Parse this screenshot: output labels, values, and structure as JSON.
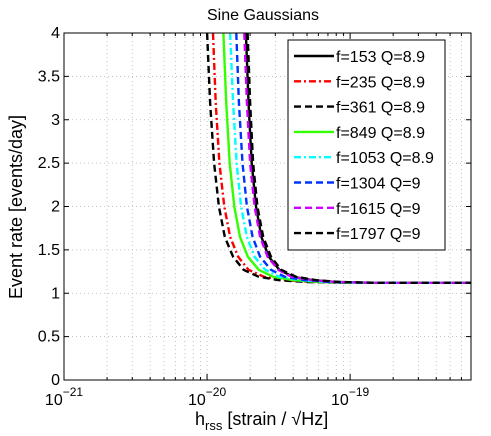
{
  "chart_data": {
    "type": "line",
    "title": "Sine Gaussians",
    "xlabel_main": "h",
    "xlabel_sub": "rss",
    "xlabel_rest": " [strain / √Hz]",
    "ylabel": "Event rate [events/day]",
    "x_scale": "log",
    "xlim": [
      1e-21,
      7e-19
    ],
    "ylim": [
      0,
      4
    ],
    "grid": true,
    "legend_position": "top-right",
    "xticks": [
      {
        "value": 1e-21,
        "base": "10",
        "exp": "−21"
      },
      {
        "value": 1e-20,
        "base": "10",
        "exp": "−20"
      },
      {
        "value": 1e-19,
        "base": "10",
        "exp": "−19"
      }
    ],
    "yticks": [
      "0",
      "0.5",
      "1",
      "1.5",
      "2",
      "2.5",
      "3",
      "3.5",
      "4"
    ],
    "series": [
      {
        "name": "f=153 Q=8.9",
        "color": "#000000",
        "style": "solid",
        "points": [
          [
            1.87e-20,
            4.0
          ],
          [
            1.95e-20,
            3.2
          ],
          [
            2.05e-20,
            2.5
          ],
          [
            2.2e-20,
            2.0
          ],
          [
            2.4e-20,
            1.65
          ],
          [
            2.7e-20,
            1.42
          ],
          [
            3.2e-20,
            1.27
          ],
          [
            4e-20,
            1.19
          ],
          [
            5.5e-20,
            1.15
          ],
          [
            8e-20,
            1.13
          ],
          [
            1.5e-19,
            1.12
          ],
          [
            7e-19,
            1.12
          ]
        ]
      },
      {
        "name": "f=235 Q=8.9",
        "color": "#ff0000",
        "style": "dashdot",
        "points": [
          [
            1.1e-20,
            4.0
          ],
          [
            1.15e-20,
            3.2
          ],
          [
            1.22e-20,
            2.5
          ],
          [
            1.32e-20,
            2.0
          ],
          [
            1.45e-20,
            1.65
          ],
          [
            1.65e-20,
            1.42
          ],
          [
            1.95e-20,
            1.27
          ],
          [
            2.5e-20,
            1.19
          ],
          [
            3.5e-20,
            1.15
          ],
          [
            5.5e-20,
            1.13
          ],
          [
            1e-19,
            1.12
          ],
          [
            7e-19,
            1.12
          ]
        ]
      },
      {
        "name": "f=361 Q=8.9",
        "color": "#000000",
        "style": "dashed",
        "points": [
          [
            1e-20,
            4.0
          ],
          [
            1.05e-20,
            3.2
          ],
          [
            1.12e-20,
            2.5
          ],
          [
            1.21e-20,
            2.0
          ],
          [
            1.33e-20,
            1.65
          ],
          [
            1.52e-20,
            1.42
          ],
          [
            1.8e-20,
            1.27
          ],
          [
            2.3e-20,
            1.19
          ],
          [
            3.2e-20,
            1.15
          ],
          [
            5e-20,
            1.13
          ],
          [
            9e-20,
            1.12
          ],
          [
            7e-19,
            1.12
          ]
        ]
      },
      {
        "name": "f=849 Q=8.9",
        "color": "#33ff00",
        "style": "solid",
        "points": [
          [
            1.3e-20,
            4.0
          ],
          [
            1.36e-20,
            3.2
          ],
          [
            1.44e-20,
            2.5
          ],
          [
            1.55e-20,
            2.0
          ],
          [
            1.7e-20,
            1.65
          ],
          [
            1.93e-20,
            1.42
          ],
          [
            2.3e-20,
            1.27
          ],
          [
            2.9e-20,
            1.19
          ],
          [
            4e-20,
            1.15
          ],
          [
            6.2e-20,
            1.13
          ],
          [
            1.1e-19,
            1.12
          ],
          [
            7e-19,
            1.12
          ]
        ]
      },
      {
        "name": "f=1053 Q=8.9",
        "color": "#00ffff",
        "style": "dashdot",
        "points": [
          [
            1.45e-20,
            4.0
          ],
          [
            1.52e-20,
            3.2
          ],
          [
            1.61e-20,
            2.5
          ],
          [
            1.73e-20,
            2.0
          ],
          [
            1.9e-20,
            1.65
          ],
          [
            2.15e-20,
            1.42
          ],
          [
            2.55e-20,
            1.27
          ],
          [
            3.2e-20,
            1.19
          ],
          [
            4.5e-20,
            1.15
          ],
          [
            6.8e-20,
            1.13
          ],
          [
            1.2e-19,
            1.12
          ],
          [
            7e-19,
            1.12
          ]
        ]
      },
      {
        "name": "f=1304 Q=9",
        "color": "#0033ff",
        "style": "dashed",
        "points": [
          [
            1.6e-20,
            4.0
          ],
          [
            1.67e-20,
            3.2
          ],
          [
            1.77e-20,
            2.5
          ],
          [
            1.9e-20,
            2.0
          ],
          [
            2.08e-20,
            1.65
          ],
          [
            2.35e-20,
            1.42
          ],
          [
            2.8e-20,
            1.27
          ],
          [
            3.5e-20,
            1.19
          ],
          [
            4.8e-20,
            1.15
          ],
          [
            7.2e-20,
            1.13
          ],
          [
            1.3e-19,
            1.12
          ],
          [
            7e-19,
            1.12
          ]
        ]
      },
      {
        "name": "f=1615 Q=9",
        "color": "#cc00ff",
        "style": "dashed",
        "points": [
          [
            1.82e-20,
            4.0
          ],
          [
            1.9e-20,
            3.2
          ],
          [
            2e-20,
            2.5
          ],
          [
            2.15e-20,
            2.0
          ],
          [
            2.35e-20,
            1.65
          ],
          [
            2.65e-20,
            1.42
          ],
          [
            3.15e-20,
            1.27
          ],
          [
            3.9e-20,
            1.19
          ],
          [
            5.4e-20,
            1.15
          ],
          [
            8e-20,
            1.13
          ],
          [
            1.4e-19,
            1.12
          ],
          [
            7e-19,
            1.12
          ]
        ]
      },
      {
        "name": "f=1797 Q=9",
        "color": "#000000",
        "style": "dashed",
        "points": [
          [
            1.92e-20,
            4.0
          ],
          [
            2e-20,
            3.2
          ],
          [
            2.1e-20,
            2.5
          ],
          [
            2.25e-20,
            2.0
          ],
          [
            2.47e-20,
            1.65
          ],
          [
            2.8e-20,
            1.42
          ],
          [
            3.3e-20,
            1.27
          ],
          [
            4.2e-20,
            1.19
          ],
          [
            5.8e-20,
            1.15
          ],
          [
            8.5e-20,
            1.13
          ],
          [
            1.5e-19,
            1.12
          ],
          [
            7e-19,
            1.12
          ]
        ]
      }
    ]
  }
}
